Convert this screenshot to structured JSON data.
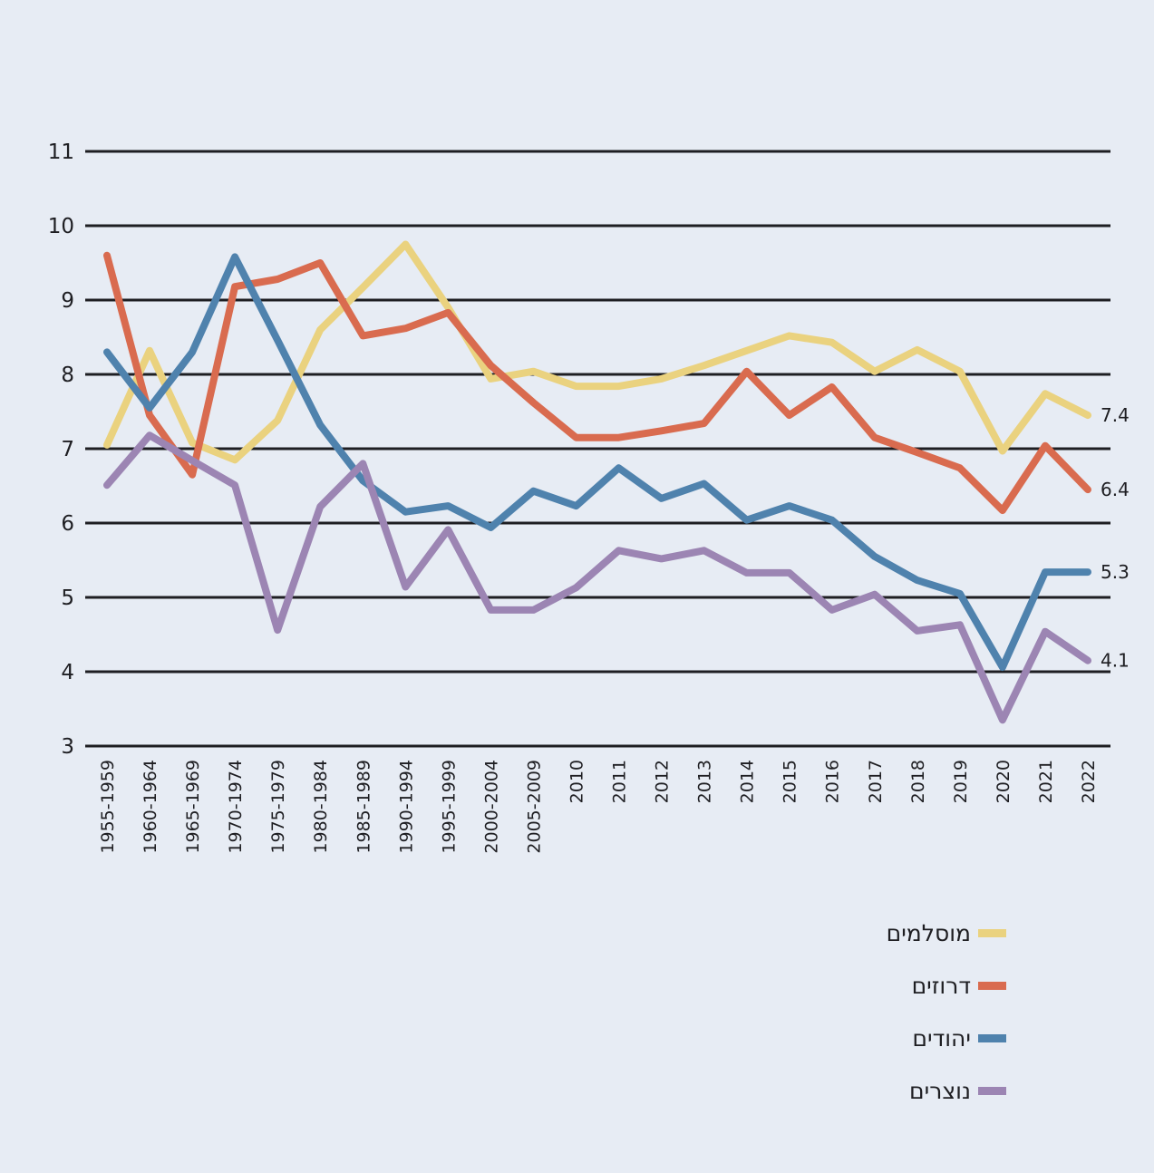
{
  "chart_data": {
    "type": "line",
    "title": "",
    "xlabel": "",
    "ylabel": "",
    "ylim": [
      3,
      11
    ],
    "yticks": [
      3,
      4,
      5,
      6,
      7,
      8,
      9,
      10,
      11
    ],
    "grid": true,
    "legend_position": "bottom-right",
    "categories": [
      "1955-1959",
      "1960-1964",
      "1965-1969",
      "1970-1974",
      "1975-1979",
      "1980-1984",
      "1985-1989",
      "1990-1994",
      "1995-1999",
      "2000-2004",
      "2005-2009",
      "2010",
      "2011",
      "2012",
      "2013",
      "2014",
      "2015",
      "2016",
      "2017",
      "2018",
      "2019",
      "2020",
      "2021",
      "2022"
    ],
    "series": [
      {
        "name": "מוסלמים",
        "color": "#ead27f",
        "end_label": "7.4",
        "values": [
          7.05,
          8.32,
          7.08,
          6.85,
          7.38,
          8.6,
          9.17,
          9.75,
          8.9,
          7.94,
          8.04,
          7.84,
          7.84,
          7.94,
          8.12,
          8.32,
          8.52,
          8.43,
          8.04,
          8.33,
          8.04,
          6.97,
          7.74,
          7.45
        ]
      },
      {
        "name": "דרוזים",
        "color": "#d96b4f",
        "end_label": "6.4",
        "values": [
          9.6,
          7.45,
          6.65,
          9.18,
          9.28,
          9.5,
          8.52,
          8.62,
          8.83,
          8.12,
          7.62,
          7.15,
          7.15,
          7.24,
          7.34,
          8.04,
          7.45,
          7.83,
          7.15,
          6.95,
          6.74,
          6.17,
          7.04,
          6.45
        ]
      },
      {
        "name": "יהודים",
        "color": "#4f82ad",
        "end_label": "5.3",
        "values": [
          8.3,
          7.55,
          8.3,
          9.58,
          8.46,
          7.32,
          6.57,
          6.15,
          6.23,
          5.94,
          6.43,
          6.23,
          6.74,
          6.33,
          6.53,
          6.04,
          6.23,
          6.04,
          5.55,
          5.23,
          5.05,
          4.06,
          5.34,
          5.34
        ]
      },
      {
        "name": "נוצרים",
        "color": "#9c85b3",
        "end_label": "4.1",
        "values": [
          6.51,
          7.18,
          6.84,
          6.51,
          4.56,
          6.22,
          6.8,
          5.14,
          5.91,
          4.83,
          4.83,
          5.13,
          5.63,
          5.52,
          5.63,
          5.33,
          5.33,
          4.83,
          5.04,
          4.55,
          4.63,
          3.35,
          4.54,
          4.15
        ]
      }
    ]
  }
}
